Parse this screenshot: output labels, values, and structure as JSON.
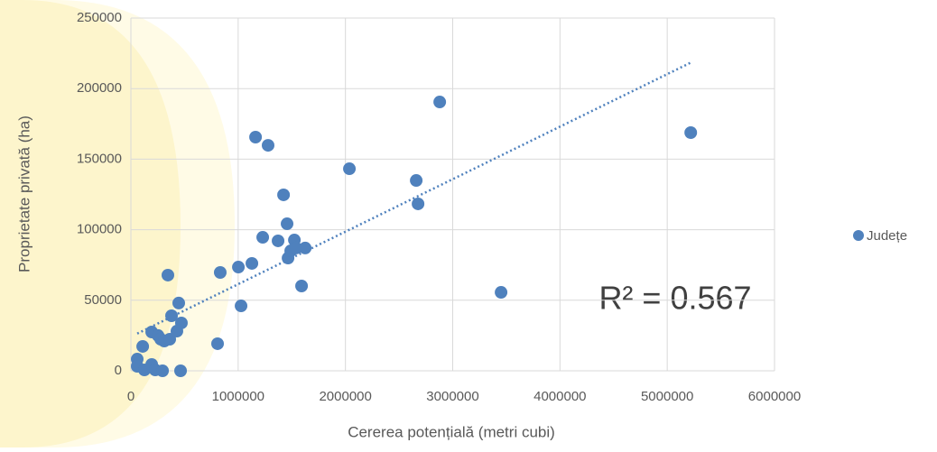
{
  "chart_data": {
    "type": "scatter",
    "x_label": "Cererea potențială (metri cubi)",
    "y_label": "Proprietate privată (ha)",
    "annotation": "R² = 0.567",
    "trendline": true,
    "grid": true,
    "legend": "right",
    "series": [
      {
        "name": "Județe",
        "color": "#4f81bd",
        "x": [
          59000,
          59000,
          110000,
          126000,
          194000,
          194000,
          253000,
          278000,
          311000,
          362000,
          345000,
          379000,
          429000,
          446000,
          471000,
          227000,
          295000,
          463000,
          808000,
          833000,
          1002000,
          1027000,
          1128000,
          1162000,
          1229000,
          1279000,
          1372000,
          1423000,
          1456000,
          1465000,
          1490000,
          1524000,
          1540000,
          1591000,
          1625000,
          2037000,
          2660000,
          2677000,
          2879000,
          3451000,
          5219000
        ],
        "values": [
          8300,
          3200,
          17300,
          600,
          27500,
          4500,
          25000,
          22400,
          21100,
          22400,
          67800,
          39000,
          28100,
          48000,
          33900,
          600,
          0,
          0,
          19200,
          69700,
          73500,
          46000,
          76100,
          165600,
          94600,
          159800,
          92100,
          124700,
          104200,
          79900,
          85000,
          92700,
          87000,
          60100,
          87000,
          143200,
          134900,
          118300,
          190500,
          55600,
          168800
        ]
      }
    ],
    "xlim": [
      0,
      6000000
    ],
    "xticks": [
      0,
      1000000,
      2000000,
      3000000,
      4000000,
      5000000,
      6000000
    ],
    "ylim": [
      0,
      250000
    ],
    "yticks": [
      0,
      50000,
      100000,
      150000,
      200000,
      250000
    ]
  }
}
